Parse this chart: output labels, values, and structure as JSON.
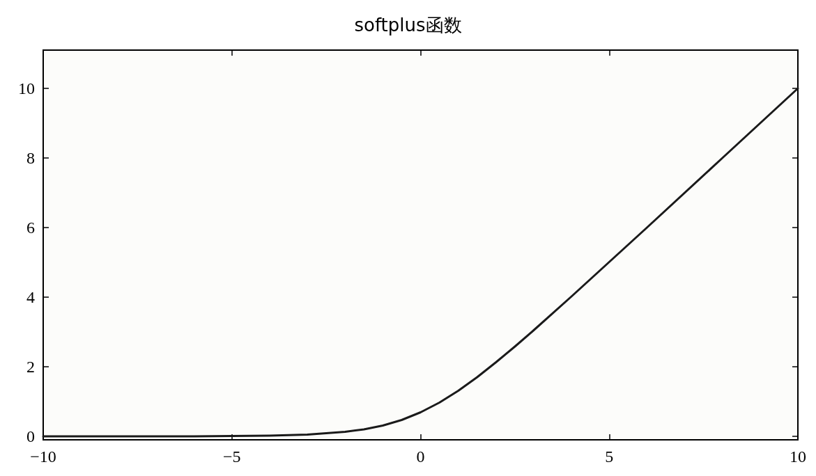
{
  "chart_data": {
    "type": "line",
    "title": "softplus函数",
    "x": [
      -10,
      -8,
      -6,
      -5,
      -4,
      -3,
      -2,
      -1.5,
      -1,
      -0.5,
      0,
      0.5,
      1,
      1.5,
      2,
      2.5,
      3,
      4,
      5,
      6,
      8,
      10
    ],
    "values": [
      0,
      0,
      0,
      0.01,
      0.02,
      0.05,
      0.13,
      0.2,
      0.31,
      0.47,
      0.69,
      0.97,
      1.31,
      1.7,
      2.13,
      2.58,
      3.05,
      4.02,
      5.01,
      6,
      8,
      10
    ],
    "color": "#1a1a1a",
    "line_style": "solid",
    "xlim": [
      -10,
      10
    ],
    "xticks": [
      {
        "value": -10,
        "label": "−10"
      },
      {
        "value": -5,
        "label": "−5"
      },
      0,
      5,
      10
    ],
    "ylim": [
      -0.1,
      11.1
    ],
    "yticks": [
      0,
      2,
      4,
      6,
      8,
      10
    ]
  }
}
